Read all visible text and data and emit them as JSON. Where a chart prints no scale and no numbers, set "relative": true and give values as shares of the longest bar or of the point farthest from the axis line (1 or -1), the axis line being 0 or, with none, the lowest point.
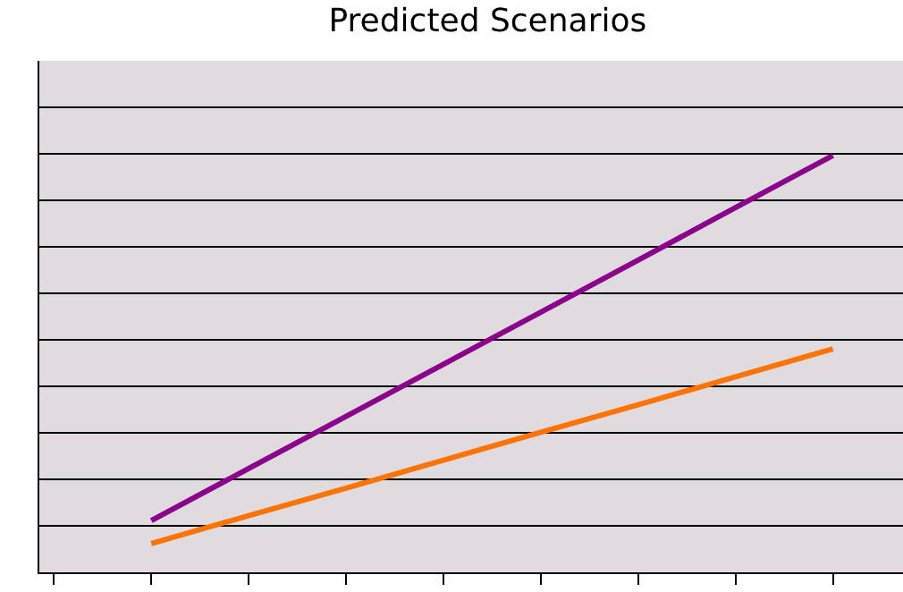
{
  "chart_data": {
    "type": "line",
    "title": "Predicted Scenarios",
    "relative": true,
    "grid": "y",
    "categories": [
      null,
      null,
      null,
      null,
      null,
      null,
      null,
      null,
      null
    ],
    "series": [
      {
        "color": "#8b008b",
        "values": [
          null,
          0.124,
          0.249,
          0.374,
          0.499,
          0.624,
          0.749,
          0.875,
          1.0
        ]
      },
      {
        "color": "#ff7400",
        "values": [
          null,
          0.069,
          0.136,
          0.202,
          0.269,
          0.336,
          0.402,
          0.469,
          0.536
        ]
      }
    ]
  }
}
